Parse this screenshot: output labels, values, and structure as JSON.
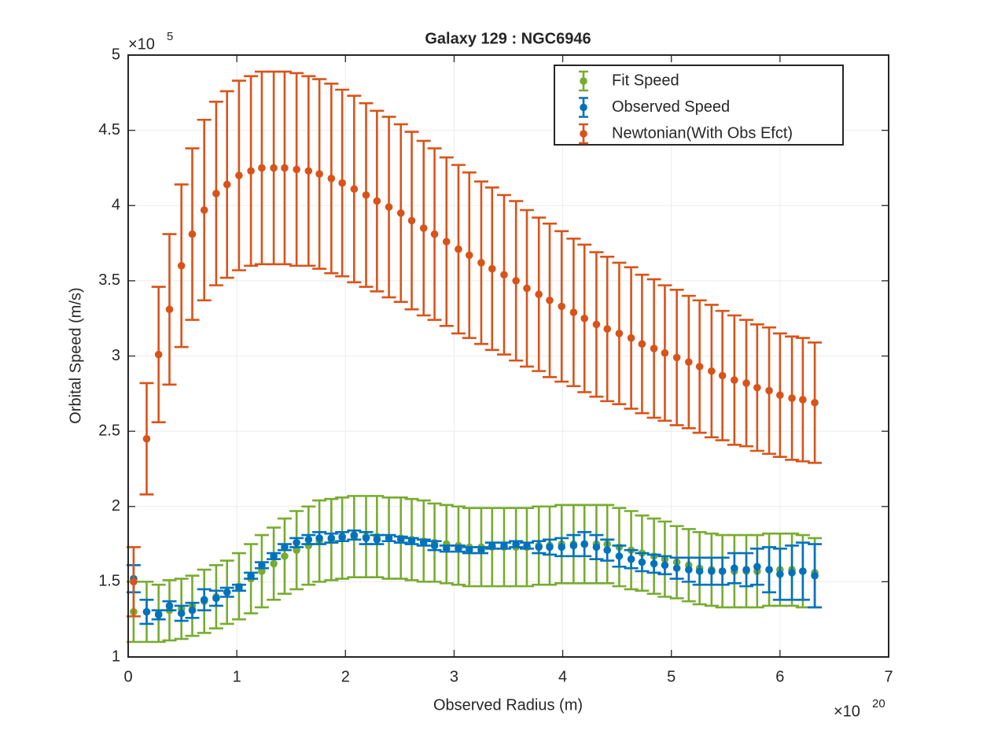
{
  "chart_data": {
    "type": "errorbar",
    "title": "Galaxy 129 : NGC6946",
    "x_label": "Observed Radius (m)",
    "y_label": "Orbital Speed (m/s)",
    "x_multiplier": "×10",
    "x_multiplier_exponent": "20",
    "y_multiplier": "×10",
    "y_multiplier_exponent": "5",
    "xlim": [
      0,
      7
    ],
    "xticks": [
      0,
      1,
      2,
      3,
      4,
      5,
      6,
      7
    ],
    "ylim": [
      1,
      5
    ],
    "yticks": [
      1,
      1.5,
      2,
      2.5,
      3,
      3.5,
      4,
      4.5,
      5
    ],
    "grid": true,
    "legend": "top-right",
    "x": [
      0.05,
      0.17,
      0.28,
      0.38,
      0.49,
      0.59,
      0.7,
      0.81,
      0.91,
      1.02,
      1.13,
      1.23,
      1.34,
      1.44,
      1.55,
      1.66,
      1.76,
      1.87,
      1.97,
      2.08,
      2.19,
      2.29,
      2.4,
      2.51,
      2.61,
      2.72,
      2.82,
      2.93,
      3.04,
      3.14,
      3.25,
      3.35,
      3.46,
      3.57,
      3.67,
      3.78,
      3.88,
      3.99,
      4.1,
      4.2,
      4.31,
      4.41,
      4.52,
      4.63,
      4.73,
      4.84,
      4.94,
      5.05,
      5.16,
      5.26,
      5.37,
      5.47,
      5.58,
      5.69,
      5.79,
      5.9,
      6,
      6.11,
      6.21,
      6.32
    ],
    "series": [
      {
        "name": "Fit Speed",
        "color": "#77ac30",
        "values": [
          1.3,
          1.3,
          1.29,
          1.31,
          1.32,
          1.34,
          1.37,
          1.4,
          1.43,
          1.47,
          1.52,
          1.57,
          1.62,
          1.67,
          1.71,
          1.74,
          1.77,
          1.78,
          1.79,
          1.8,
          1.8,
          1.8,
          1.79,
          1.79,
          1.78,
          1.77,
          1.76,
          1.75,
          1.74,
          1.73,
          1.73,
          1.73,
          1.73,
          1.73,
          1.73,
          1.74,
          1.74,
          1.75,
          1.75,
          1.75,
          1.75,
          1.75,
          1.73,
          1.71,
          1.69,
          1.67,
          1.65,
          1.63,
          1.61,
          1.59,
          1.58,
          1.57,
          1.57,
          1.57,
          1.57,
          1.58,
          1.58,
          1.58,
          1.57,
          1.56
        ],
        "errors": [
          0.2,
          0.2,
          0.19,
          0.2,
          0.2,
          0.2,
          0.21,
          0.21,
          0.21,
          0.22,
          0.23,
          0.24,
          0.24,
          0.25,
          0.26,
          0.26,
          0.27,
          0.27,
          0.27,
          0.27,
          0.27,
          0.27,
          0.27,
          0.27,
          0.27,
          0.27,
          0.26,
          0.26,
          0.26,
          0.26,
          0.26,
          0.26,
          0.26,
          0.26,
          0.26,
          0.26,
          0.26,
          0.26,
          0.26,
          0.26,
          0.26,
          0.26,
          0.26,
          0.26,
          0.25,
          0.25,
          0.25,
          0.24,
          0.24,
          0.24,
          0.24,
          0.24,
          0.24,
          0.24,
          0.24,
          0.24,
          0.24,
          0.24,
          0.24,
          0.23
        ]
      },
      {
        "name": "Observed Speed",
        "color": "#0072bd",
        "values": [
          1.52,
          1.3,
          1.28,
          1.34,
          1.29,
          1.31,
          1.38,
          1.39,
          1.43,
          1.46,
          1.54,
          1.61,
          1.67,
          1.73,
          1.76,
          1.78,
          1.79,
          1.79,
          1.8,
          1.81,
          1.79,
          1.78,
          1.79,
          1.78,
          1.77,
          1.76,
          1.74,
          1.72,
          1.72,
          1.71,
          1.71,
          1.74,
          1.74,
          1.75,
          1.74,
          1.73,
          1.73,
          1.73,
          1.74,
          1.75,
          1.73,
          1.71,
          1.67,
          1.65,
          1.63,
          1.62,
          1.61,
          1.59,
          1.58,
          1.57,
          1.57,
          1.57,
          1.59,
          1.58,
          1.6,
          1.58,
          1.55,
          1.56,
          1.57,
          1.54
        ],
        "errors": [
          0.09,
          0.08,
          0.03,
          0.03,
          0.05,
          0.05,
          0.07,
          0.05,
          0.03,
          0.02,
          0.02,
          0.02,
          0.02,
          0.02,
          0.03,
          0.03,
          0.04,
          0.03,
          0.03,
          0.03,
          0.04,
          0.03,
          0.02,
          0.02,
          0.02,
          0.02,
          0.03,
          0.02,
          0.02,
          0.02,
          0.02,
          0.02,
          0.02,
          0.02,
          0.02,
          0.04,
          0.05,
          0.06,
          0.07,
          0.08,
          0.08,
          0.07,
          0.07,
          0.06,
          0.06,
          0.06,
          0.06,
          0.07,
          0.08,
          0.09,
          0.09,
          0.09,
          0.1,
          0.11,
          0.12,
          0.15,
          0.17,
          0.18,
          0.19,
          0.21
        ]
      },
      {
        "name": "Newtonian(With Obs Efct)",
        "color": "#d95319",
        "values": [
          1.5,
          2.45,
          3.01,
          3.31,
          3.6,
          3.81,
          3.97,
          4.08,
          4.14,
          4.2,
          4.23,
          4.25,
          4.25,
          4.25,
          4.24,
          4.23,
          4.21,
          4.18,
          4.15,
          4.11,
          4.07,
          4.03,
          3.99,
          3.95,
          3.9,
          3.85,
          3.81,
          3.76,
          3.71,
          3.67,
          3.62,
          3.58,
          3.54,
          3.5,
          3.45,
          3.41,
          3.37,
          3.33,
          3.29,
          3.25,
          3.21,
          3.18,
          3.15,
          3.12,
          3.08,
          3.05,
          3.02,
          2.99,
          2.96,
          2.93,
          2.9,
          2.87,
          2.84,
          2.82,
          2.79,
          2.77,
          2.74,
          2.72,
          2.71,
          2.69
        ],
        "errors": [
          0.23,
          0.37,
          0.45,
          0.5,
          0.54,
          0.57,
          0.6,
          0.61,
          0.62,
          0.63,
          0.63,
          0.64,
          0.64,
          0.64,
          0.64,
          0.63,
          0.63,
          0.63,
          0.62,
          0.62,
          0.61,
          0.6,
          0.6,
          0.59,
          0.59,
          0.58,
          0.57,
          0.56,
          0.56,
          0.55,
          0.54,
          0.54,
          0.53,
          0.53,
          0.52,
          0.51,
          0.51,
          0.5,
          0.49,
          0.49,
          0.48,
          0.48,
          0.47,
          0.47,
          0.46,
          0.46,
          0.45,
          0.45,
          0.44,
          0.44,
          0.44,
          0.43,
          0.43,
          0.42,
          0.42,
          0.42,
          0.41,
          0.41,
          0.41,
          0.4
        ]
      }
    ]
  }
}
